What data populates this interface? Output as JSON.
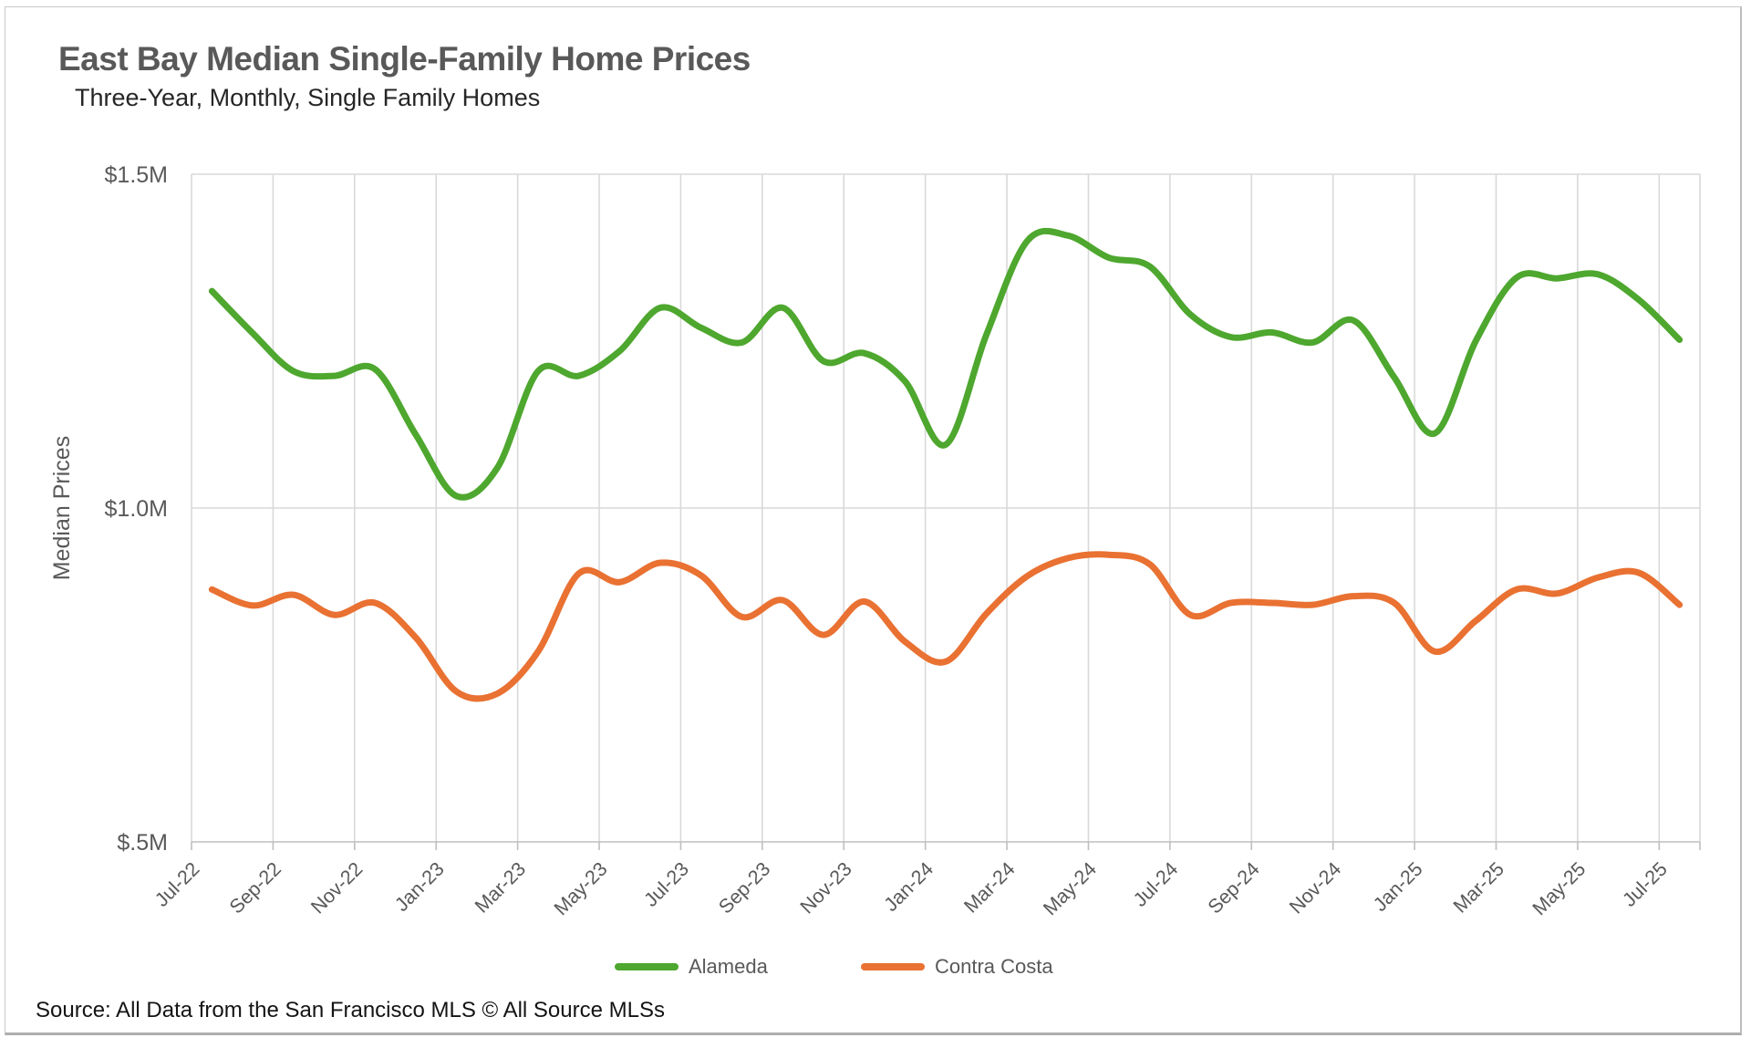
{
  "header": {
    "title": "East Bay Median Single-Family Home Prices",
    "subtitle": "Three-Year, Monthly, Single Family Homes"
  },
  "source_note": "Source: All Data from the San Francisco MLS © All Source MLSs",
  "legend": [
    {
      "label": "Alameda",
      "color": "#4EA72E"
    },
    {
      "label": "Contra Costa",
      "color": "#E97132"
    }
  ],
  "colors": {
    "alameda": "#4EA72E",
    "contra_costa": "#E97132",
    "gridline": "#D9D9D9",
    "axis_line": "#BFBFBF",
    "axis_text": "#595959",
    "title_text": "#595959"
  },
  "chart_data": {
    "type": "line",
    "title": "East Bay Median Single-Family Home Prices",
    "subtitle": "Three-Year, Monthly, Single Family Homes",
    "ylabel": "Median Prices",
    "xlabel": "",
    "unit": "$M",
    "ylim": [
      0.5,
      1.5
    ],
    "grid": "vertical every 2 months + horizontal at y ticks",
    "legend_position": "bottom",
    "smooth": true,
    "y_ticks": [
      {
        "value": 1.5,
        "label": "$1.5M"
      },
      {
        "value": 1.0,
        "label": "$1.0M"
      },
      {
        "value": 0.5,
        "label": "$.5M"
      }
    ],
    "x_tick_every": 2,
    "x": [
      "Jul-22",
      "Aug-22",
      "Sep-22",
      "Oct-22",
      "Nov-22",
      "Dec-22",
      "Jan-23",
      "Feb-23",
      "Mar-23",
      "Apr-23",
      "May-23",
      "Jun-23",
      "Jul-23",
      "Aug-23",
      "Sep-23",
      "Oct-23",
      "Nov-23",
      "Dec-23",
      "Jan-24",
      "Feb-24",
      "Mar-24",
      "Apr-24",
      "May-24",
      "Jun-24",
      "Jul-24",
      "Aug-24",
      "Sep-24",
      "Oct-24",
      "Nov-24",
      "Dec-24",
      "Jan-25",
      "Feb-25",
      "Mar-25",
      "Apr-25",
      "May-25",
      "Jun-25",
      "Jul-25"
    ],
    "series": [
      {
        "name": "Alameda",
        "color": "#4EA72E",
        "values": [
          1.325,
          1.262,
          1.205,
          1.198,
          1.208,
          1.11,
          1.018,
          1.06,
          1.205,
          1.198,
          1.235,
          1.3,
          1.27,
          1.248,
          1.3,
          1.22,
          1.232,
          1.19,
          1.095,
          1.26,
          1.4,
          1.408,
          1.375,
          1.362,
          1.29,
          1.256,
          1.263,
          1.248,
          1.281,
          1.196,
          1.112,
          1.25,
          1.345,
          1.344,
          1.35,
          1.312,
          1.252
        ]
      },
      {
        "name": "Contra Costa",
        "color": "#E97132",
        "values": [
          0.878,
          0.854,
          0.87,
          0.84,
          0.858,
          0.806,
          0.725,
          0.722,
          0.785,
          0.902,
          0.889,
          0.918,
          0.899,
          0.837,
          0.862,
          0.81,
          0.86,
          0.8,
          0.77,
          0.842,
          0.898,
          0.925,
          0.93,
          0.916,
          0.84,
          0.858,
          0.858,
          0.855,
          0.868,
          0.858,
          0.785,
          0.831,
          0.878,
          0.872,
          0.896,
          0.903,
          0.855
        ]
      }
    ]
  }
}
